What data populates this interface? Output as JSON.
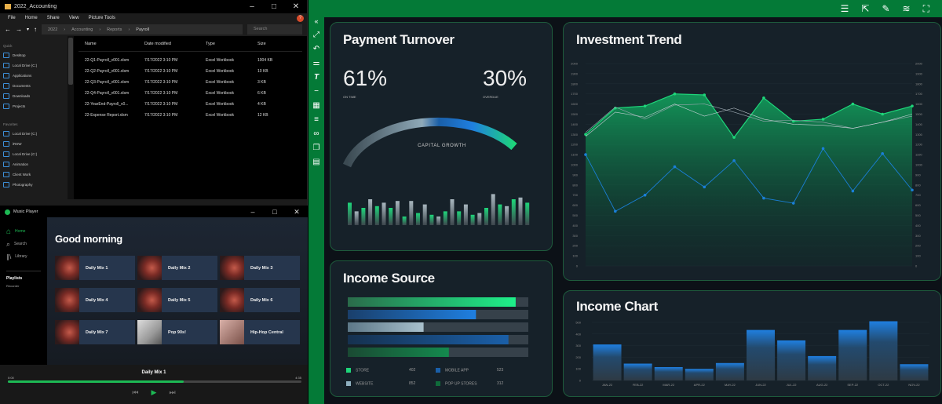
{
  "explorer": {
    "title": "2022_Accounting",
    "menu": [
      "File",
      "Home",
      "Share",
      "View",
      "Picture Tools"
    ],
    "breadcrumb": [
      "2022",
      "Accounting",
      "Reports",
      "Payroll"
    ],
    "search_placeholder": "Search",
    "sidebar": {
      "quick": [
        "Desktop",
        "Local Drive (C:)",
        "Applications",
        "Documents",
        "Downloads",
        "Projects"
      ],
      "section2_label": "Favorites",
      "favorites": [
        "Local Drive (C:)",
        "iRSW",
        "Local Drive (C:)",
        "Animation",
        "Client Work",
        "Photography"
      ]
    },
    "columns": [
      "Name",
      "Date modified",
      "Type",
      "Size"
    ],
    "files": [
      {
        "name": "22-Q1-Payroll_v001.xlsm",
        "date": "7/17/2022  3:10 PM",
        "type": "Excel Workbook",
        "size": "1004 KB"
      },
      {
        "name": "22-Q2-Payroll_v001.xlsm",
        "date": "7/17/2022  3:10 PM",
        "type": "Excel Workbook",
        "size": "10 KB"
      },
      {
        "name": "22-Q3-Payroll_v001.xlsm",
        "date": "7/17/2022  3:10 PM",
        "type": "Excel Workbook",
        "size": "3 KB"
      },
      {
        "name": "22-Q4-Payroll_v001.xlsm",
        "date": "7/17/2022  3:10 PM",
        "type": "Excel Workbook",
        "size": "6 KB"
      },
      {
        "name": "22-YearEnd-Payroll_v0...",
        "date": "7/17/2022  3:10 PM",
        "type": "Excel Workbook",
        "size": "4 KB"
      },
      {
        "name": "22-Expense Report.xlsm",
        "date": "7/17/2022  3:10 PM",
        "type": "Excel Workbook",
        "size": "12 KB"
      }
    ]
  },
  "music": {
    "title": "Music Player",
    "nav": [
      "Home",
      "Search",
      "Library"
    ],
    "playlists_label": "Playlists",
    "playlist_item": "Recorder",
    "greeting": "Good morning",
    "tiles": [
      "Daily Mix 1",
      "Daily Mix 2",
      "Daily Mix 3",
      "Daily Mix 4",
      "Daily Mix 5",
      "Daily Mix 6",
      "Daily Mix 7",
      "Pop 90s!",
      "Hip-Hop Central"
    ],
    "now_playing": "Daily Mix 1",
    "time_elapsed": "0:00",
    "time_total": "4:35",
    "progress": 0.6
  },
  "dashboard": {
    "payment": {
      "title": "Payment Turnover",
      "on_time_value": "61%",
      "on_time_label": "ON TIME",
      "overdue_value": "30%",
      "overdue_label": "OVERDUE",
      "gauge_label": "CAPITAL GROWTH"
    },
    "investment": {
      "title": "Investment Trend"
    },
    "income_source": {
      "title": "Income Source",
      "legend": [
        {
          "label": "STORE",
          "value": "402",
          "color": "#1ed67a"
        },
        {
          "label": "MOBILE APP",
          "value": "523",
          "color": "#1a5fa8"
        },
        {
          "label": "WEBSITE",
          "value": "852",
          "color": "#8fb0c0"
        },
        {
          "label": "POP UP STORES",
          "value": "312",
          "color": "#0f6b3a"
        }
      ]
    },
    "income_chart": {
      "title": "Income Chart"
    }
  },
  "chart_data": [
    {
      "type": "bar",
      "name": "payment-mini-bars",
      "values": [
        26,
        16,
        20,
        30,
        22,
        26,
        20,
        28,
        10,
        28,
        14,
        24,
        12,
        10,
        16,
        30,
        16,
        24,
        12,
        14,
        20,
        36,
        24,
        22,
        30,
        32,
        26
      ],
      "ylim": [
        0,
        40
      ]
    },
    {
      "type": "line",
      "title": "Investment Trend",
      "ylim": [
        0,
        2000
      ],
      "yticks": [
        0,
        100,
        200,
        300,
        400,
        500,
        600,
        700,
        800,
        900,
        1000,
        1100,
        1200,
        1300,
        1400,
        1500,
        1600,
        1700,
        1800,
        1900,
        2000
      ],
      "x": [
        0,
        1,
        2,
        3,
        4,
        5,
        6,
        7,
        8,
        9,
        10,
        11
      ],
      "series": [
        {
          "values": [
            1300,
            1560,
            1580,
            1700,
            1690,
            1270,
            1660,
            1430,
            1450,
            1600,
            1500,
            1580
          ]
        },
        {
          "values": [
            1320,
            1570,
            1450,
            1590,
            1600,
            1520,
            1430,
            1440,
            1420,
            1360,
            1420,
            1480
          ]
        },
        {
          "values": [
            1280,
            1520,
            1470,
            1600,
            1480,
            1560,
            1450,
            1400,
            1390,
            1360,
            1420,
            1500
          ]
        },
        {
          "values": [
            1100,
            540,
            700,
            980,
            780,
            1040,
            670,
            620,
            1160,
            740,
            1110,
            750
          ]
        }
      ]
    },
    {
      "type": "bar",
      "title": "Income Source",
      "orientation": "horizontal",
      "max": 100,
      "values": [
        93,
        71,
        42,
        89,
        56
      ],
      "tracks": [
        100,
        100,
        100,
        100,
        100
      ]
    },
    {
      "type": "bar",
      "title": "Income Chart",
      "categories": [
        "JAN-22",
        "FEB-22",
        "MAR-22",
        "APR-22",
        "MAY-22",
        "JUN-22",
        "JUL-22",
        "AUG-22",
        "SEP-22",
        "OCT-22",
        "NOV-22"
      ],
      "values": [
        310,
        145,
        115,
        100,
        150,
        435,
        345,
        210,
        435,
        510,
        140
      ],
      "ylim": [
        0,
        500
      ],
      "yticks": [
        0,
        100,
        200,
        300,
        400,
        500
      ]
    }
  ]
}
